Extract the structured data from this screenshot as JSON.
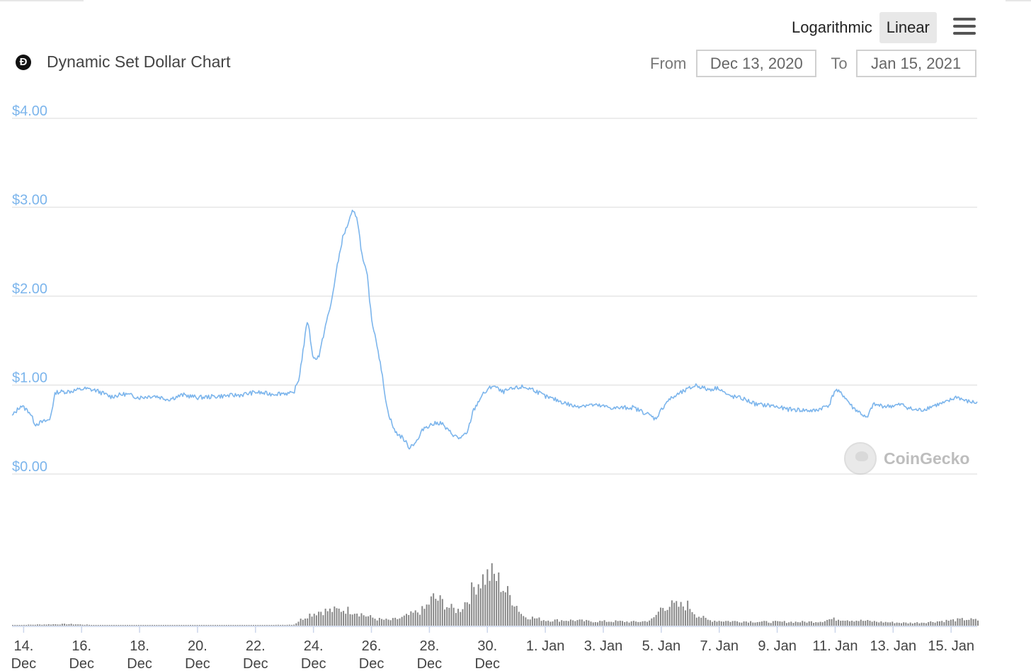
{
  "header": {
    "scale_options": [
      "Logarithmic",
      "Linear"
    ],
    "active_scale": "Linear",
    "title": "Dynamic Set Dollar Chart",
    "logo_glyph": "Ð",
    "from_label": "From",
    "from_value": "Dec 13, 2020",
    "to_label": "To",
    "to_value": "Jan 15, 2021",
    "watermark": "CoinGecko",
    "icons": [
      "menu-icon",
      "coin-logo-icon",
      "coingecko-logo-icon"
    ]
  },
  "chart_data": {
    "type": "line",
    "title": "Dynamic Set Dollar Chart",
    "xlabel": "",
    "ylabel": "",
    "ylim": [
      0,
      4
    ],
    "grid": true,
    "legend": "none",
    "line_color": "#7cb5ec",
    "volume_color": "#888888",
    "y_ticks": [
      {
        "value": 0,
        "label": "$0.00"
      },
      {
        "value": 1,
        "label": "$1.00"
      },
      {
        "value": 2,
        "label": "$2.00"
      },
      {
        "value": 3,
        "label": "$3.00"
      },
      {
        "value": 4,
        "label": "$4.00"
      }
    ],
    "x_ticks": [
      {
        "day": 14,
        "line1": "14.",
        "line2": "Dec"
      },
      {
        "day": 16,
        "line1": "16.",
        "line2": "Dec"
      },
      {
        "day": 18,
        "line1": "18.",
        "line2": "Dec"
      },
      {
        "day": 20,
        "line1": "20.",
        "line2": "Dec"
      },
      {
        "day": 22,
        "line1": "22.",
        "line2": "Dec"
      },
      {
        "day": 24,
        "line1": "24.",
        "line2": "Dec"
      },
      {
        "day": 26,
        "line1": "26.",
        "line2": "Dec"
      },
      {
        "day": 28,
        "line1": "28.",
        "line2": "Dec"
      },
      {
        "day": 30,
        "line1": "30.",
        "line2": "Dec"
      },
      {
        "day": 32,
        "line1": "1. Jan",
        "line2": ""
      },
      {
        "day": 34,
        "line1": "3. Jan",
        "line2": ""
      },
      {
        "day": 36,
        "line1": "5. Jan",
        "line2": ""
      },
      {
        "day": 38,
        "line1": "7. Jan",
        "line2": ""
      },
      {
        "day": 40,
        "line1": "9. Jan",
        "line2": ""
      },
      {
        "day": 42,
        "line1": "11. Jan",
        "line2": ""
      },
      {
        "day": 44,
        "line1": "13. Jan",
        "line2": ""
      },
      {
        "day": 46,
        "line1": "15. Jan",
        "line2": ""
      }
    ],
    "x_domain": [
      13.6,
      46.9
    ],
    "price": [
      [
        13.6,
        0.65
      ],
      [
        13.9,
        0.77
      ],
      [
        14.2,
        0.7
      ],
      [
        14.4,
        0.56
      ],
      [
        14.6,
        0.58
      ],
      [
        14.9,
        0.61
      ],
      [
        15.1,
        0.92
      ],
      [
        15.6,
        0.93
      ],
      [
        16.1,
        0.96
      ],
      [
        16.5,
        0.94
      ],
      [
        17.0,
        0.87
      ],
      [
        17.5,
        0.9
      ],
      [
        18.0,
        0.86
      ],
      [
        18.5,
        0.88
      ],
      [
        19.0,
        0.84
      ],
      [
        19.5,
        0.89
      ],
      [
        20.0,
        0.86
      ],
      [
        20.5,
        0.87
      ],
      [
        21.0,
        0.88
      ],
      [
        21.5,
        0.89
      ],
      [
        22.0,
        0.92
      ],
      [
        22.5,
        0.9
      ],
      [
        23.0,
        0.91
      ],
      [
        23.3,
        0.9
      ],
      [
        23.5,
        1.07
      ],
      [
        23.8,
        1.75
      ],
      [
        23.9,
        1.5
      ],
      [
        24.0,
        1.29
      ],
      [
        24.2,
        1.33
      ],
      [
        24.4,
        1.65
      ],
      [
        24.6,
        1.9
      ],
      [
        24.8,
        2.3
      ],
      [
        25.0,
        2.65
      ],
      [
        25.2,
        2.82
      ],
      [
        25.35,
        2.95
      ],
      [
        25.5,
        2.9
      ],
      [
        25.7,
        2.4
      ],
      [
        25.85,
        2.25
      ],
      [
        26.0,
        1.75
      ],
      [
        26.2,
        1.45
      ],
      [
        26.4,
        1.05
      ],
      [
        26.55,
        0.72
      ],
      [
        26.8,
        0.48
      ],
      [
        27.1,
        0.4
      ],
      [
        27.3,
        0.3
      ],
      [
        27.6,
        0.38
      ],
      [
        27.8,
        0.52
      ],
      [
        28.1,
        0.56
      ],
      [
        28.4,
        0.58
      ],
      [
        28.6,
        0.5
      ],
      [
        28.8,
        0.45
      ],
      [
        29.0,
        0.4
      ],
      [
        29.3,
        0.45
      ],
      [
        29.5,
        0.7
      ],
      [
        29.8,
        0.88
      ],
      [
        30.2,
        1.0
      ],
      [
        30.5,
        0.92
      ],
      [
        30.8,
        0.95
      ],
      [
        31.2,
        0.98
      ],
      [
        31.6,
        0.95
      ],
      [
        32.0,
        0.87
      ],
      [
        32.5,
        0.82
      ],
      [
        33.0,
        0.76
      ],
      [
        33.5,
        0.78
      ],
      [
        34.0,
        0.76
      ],
      [
        34.4,
        0.74
      ],
      [
        35.0,
        0.75
      ],
      [
        35.5,
        0.68
      ],
      [
        35.8,
        0.62
      ],
      [
        36.2,
        0.82
      ],
      [
        36.6,
        0.9
      ],
      [
        36.9,
        0.95
      ],
      [
        37.2,
        1.0
      ],
      [
        37.6,
        0.95
      ],
      [
        38.0,
        0.97
      ],
      [
        38.3,
        0.88
      ],
      [
        38.8,
        0.85
      ],
      [
        39.3,
        0.78
      ],
      [
        39.8,
        0.77
      ],
      [
        40.3,
        0.73
      ],
      [
        40.8,
        0.72
      ],
      [
        41.3,
        0.71
      ],
      [
        41.8,
        0.78
      ],
      [
        42.0,
        0.95
      ],
      [
        42.3,
        0.88
      ],
      [
        42.6,
        0.75
      ],
      [
        42.9,
        0.68
      ],
      [
        43.1,
        0.62
      ],
      [
        43.3,
        0.78
      ],
      [
        43.8,
        0.76
      ],
      [
        44.3,
        0.78
      ],
      [
        44.7,
        0.72
      ],
      [
        45.0,
        0.72
      ],
      [
        45.4,
        0.77
      ],
      [
        45.8,
        0.8
      ],
      [
        46.2,
        0.87
      ],
      [
        46.5,
        0.82
      ],
      [
        46.9,
        0.8
      ]
    ],
    "volume": [
      [
        13.6,
        0.01
      ],
      [
        14.5,
        0.02
      ],
      [
        15.5,
        0.03
      ],
      [
        16.5,
        0.01
      ],
      [
        17.5,
        0.01
      ],
      [
        18.5,
        0.01
      ],
      [
        19.5,
        0.01
      ],
      [
        20.5,
        0.01
      ],
      [
        21.5,
        0.01
      ],
      [
        22.5,
        0.01
      ],
      [
        23.3,
        0.02
      ],
      [
        23.5,
        0.1
      ],
      [
        23.8,
        0.2
      ],
      [
        24.2,
        0.27
      ],
      [
        24.6,
        0.28
      ],
      [
        25.0,
        0.3
      ],
      [
        25.4,
        0.27
      ],
      [
        25.8,
        0.18
      ],
      [
        26.2,
        0.12
      ],
      [
        26.6,
        0.1
      ],
      [
        27.0,
        0.14
      ],
      [
        27.4,
        0.22
      ],
      [
        27.8,
        0.3
      ],
      [
        28.1,
        0.52
      ],
      [
        28.4,
        0.45
      ],
      [
        28.7,
        0.32
      ],
      [
        29.0,
        0.28
      ],
      [
        29.3,
        0.5
      ],
      [
        29.6,
        0.8
      ],
      [
        29.9,
        0.9
      ],
      [
        30.1,
        0.95
      ],
      [
        30.3,
        0.88
      ],
      [
        30.6,
        0.65
      ],
      [
        30.9,
        0.45
      ],
      [
        31.2,
        0.18
      ],
      [
        31.6,
        0.14
      ],
      [
        32.0,
        0.1
      ],
      [
        32.5,
        0.1
      ],
      [
        33.0,
        0.1
      ],
      [
        33.5,
        0.08
      ],
      [
        34.0,
        0.08
      ],
      [
        34.5,
        0.08
      ],
      [
        35.0,
        0.07
      ],
      [
        35.4,
        0.08
      ],
      [
        35.7,
        0.12
      ],
      [
        36.0,
        0.35
      ],
      [
        36.3,
        0.38
      ],
      [
        36.6,
        0.36
      ],
      [
        36.9,
        0.38
      ],
      [
        37.2,
        0.2
      ],
      [
        37.6,
        0.1
      ],
      [
        38.0,
        0.09
      ],
      [
        38.5,
        0.08
      ],
      [
        39.0,
        0.08
      ],
      [
        39.5,
        0.07
      ],
      [
        40.0,
        0.07
      ],
      [
        40.5,
        0.07
      ],
      [
        41.0,
        0.07
      ],
      [
        41.5,
        0.08
      ],
      [
        41.8,
        0.12
      ],
      [
        42.2,
        0.12
      ],
      [
        42.6,
        0.1
      ],
      [
        43.0,
        0.09
      ],
      [
        43.5,
        0.07
      ],
      [
        44.0,
        0.06
      ],
      [
        44.5,
        0.05
      ],
      [
        45.0,
        0.06
      ],
      [
        45.5,
        0.08
      ],
      [
        46.0,
        0.1
      ],
      [
        46.5,
        0.12
      ],
      [
        46.9,
        0.1
      ]
    ]
  }
}
